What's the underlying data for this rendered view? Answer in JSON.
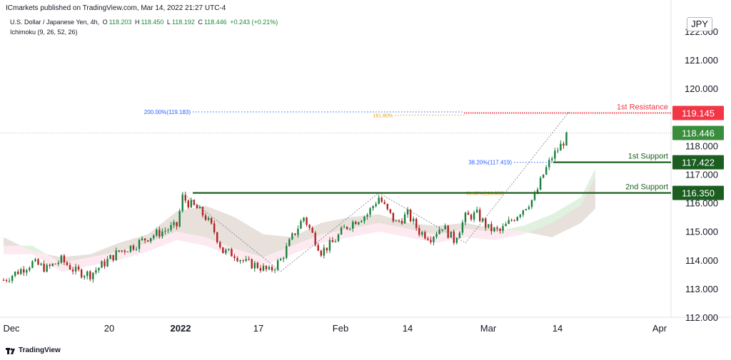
{
  "publisher": "ICmarkets published on TradingView.com, Mar 14, 2022 21:27 UTC-4",
  "symbol": {
    "name": "U.S. Dollar / Japanese Yen, 4h,",
    "indicator": "Ichimoku (9, 26, 52, 26)",
    "open_label": "O",
    "open": "118.203",
    "high_label": "H",
    "high": "118.450",
    "low_label": "L",
    "low": "118.192",
    "close_label": "C",
    "close": "118.446",
    "change": "+0.243 (+0.21%)"
  },
  "currency": "JPY",
  "footer": {
    "brand": "TradingView"
  },
  "colors": {
    "up": "#26a69a",
    "down": "#ef5350",
    "candle_up": "#1b7f3c",
    "candle_down": "#b22222",
    "cloud_green": "#a5d6a7",
    "cloud_red": "#f8bbd0",
    "resistance": "#f23645",
    "support": "#1b5e20",
    "last_price": "#388e3c",
    "fib_blue": "#2962ff",
    "fib_orange": "#e6a100"
  },
  "chart_data": {
    "type": "candlestick",
    "title": "U.S. Dollar / Japanese Yen, 4h",
    "x_ticks": [
      "Dec",
      "20",
      "2022",
      "17",
      "Feb",
      "14",
      "Mar",
      "14",
      "Apr"
    ],
    "y_ticks": [
      "122.000",
      "121.000",
      "120.000",
      "118.000",
      "117.000",
      "116.000",
      "115.000",
      "114.000",
      "113.000",
      "112.000"
    ],
    "ylim": [
      112.0,
      122.6
    ],
    "last_price": "118.446",
    "levels": [
      {
        "name": "1st Resistance",
        "value": 119.145,
        "label": "119.145",
        "kind": "resistance"
      },
      {
        "name": "1st Support",
        "value": 117.422,
        "label": "117.422",
        "kind": "support"
      },
      {
        "name": "2nd Support",
        "value": 116.35,
        "label": "116.350",
        "kind": "support"
      }
    ],
    "fib_labels": {
      "f200": "200.00%(119.183)",
      "f161": "161.80%",
      "f382": "38.20%(117.419)",
      "f618": "61.80%(116.353)"
    },
    "price_path": [
      [
        0,
        113.3
      ],
      [
        5,
        113.6
      ],
      [
        10,
        113.9
      ],
      [
        15,
        113.7
      ],
      [
        20,
        114.0
      ],
      [
        25,
        113.6
      ],
      [
        30,
        113.5
      ],
      [
        35,
        113.9
      ],
      [
        40,
        114.3
      ],
      [
        45,
        114.5
      ],
      [
        50,
        114.8
      ],
      [
        55,
        115.0
      ],
      [
        60,
        115.2
      ],
      [
        62,
        116.2
      ],
      [
        64,
        116.0
      ],
      [
        67,
        115.8
      ],
      [
        70,
        115.5
      ],
      [
        73,
        115.0
      ],
      [
        76,
        114.3
      ],
      [
        80,
        114.2
      ],
      [
        84,
        113.9
      ],
      [
        88,
        113.8
      ],
      [
        92,
        113.6
      ],
      [
        96,
        114.0
      ],
      [
        100,
        114.8
      ],
      [
        104,
        115.5
      ],
      [
        107,
        114.9
      ],
      [
        110,
        114.3
      ],
      [
        114,
        114.6
      ],
      [
        118,
        115.1
      ],
      [
        122,
        115.4
      ],
      [
        126,
        115.6
      ],
      [
        130,
        116.2
      ],
      [
        133,
        115.7
      ],
      [
        136,
        115.3
      ],
      [
        140,
        115.6
      ],
      [
        144,
        115.0
      ],
      [
        148,
        114.8
      ],
      [
        152,
        115.2
      ],
      [
        156,
        114.7
      ],
      [
        160,
        115.5
      ],
      [
        164,
        115.6
      ],
      [
        168,
        115.1
      ],
      [
        172,
        115.0
      ],
      [
        176,
        115.4
      ],
      [
        180,
        115.8
      ],
      [
        184,
        116.2
      ],
      [
        187,
        117.0
      ],
      [
        190,
        117.6
      ],
      [
        193,
        118.0
      ],
      [
        196,
        118.446
      ]
    ],
    "cloud_green": [
      [
        0,
        114.5
      ],
      [
        10,
        114.5
      ],
      [
        20,
        113.9
      ],
      [
        30,
        114.1
      ],
      [
        40,
        114.3
      ],
      [
        50,
        114.6
      ],
      [
        60,
        115.0
      ],
      [
        70,
        114.8
      ],
      [
        80,
        114.4
      ],
      [
        90,
        114.1
      ],
      [
        100,
        114.5
      ],
      [
        110,
        114.9
      ],
      [
        120,
        115.1
      ],
      [
        130,
        115.3
      ],
      [
        140,
        115.1
      ],
      [
        150,
        114.9
      ],
      [
        160,
        115.1
      ],
      [
        170,
        115.0
      ],
      [
        180,
        115.2
      ],
      [
        190,
        115.6
      ],
      [
        200,
        116.2
      ],
      [
        205,
        117.2
      ]
    ],
    "cloud_red": [
      [
        0,
        114.8
      ],
      [
        10,
        114.3
      ],
      [
        20,
        114.1
      ],
      [
        30,
        114.2
      ],
      [
        40,
        114.6
      ],
      [
        50,
        114.9
      ],
      [
        60,
        115.7
      ],
      [
        70,
        115.9
      ],
      [
        80,
        115.5
      ],
      [
        90,
        114.9
      ],
      [
        100,
        114.8
      ],
      [
        110,
        115.3
      ],
      [
        120,
        115.5
      ],
      [
        130,
        115.6
      ],
      [
        140,
        115.3
      ],
      [
        150,
        115.2
      ],
      [
        160,
        115.3
      ],
      [
        170,
        115.1
      ],
      [
        180,
        115.0
      ],
      [
        190,
        114.8
      ],
      [
        200,
        115.3
      ],
      [
        205,
        115.8
      ]
    ]
  }
}
